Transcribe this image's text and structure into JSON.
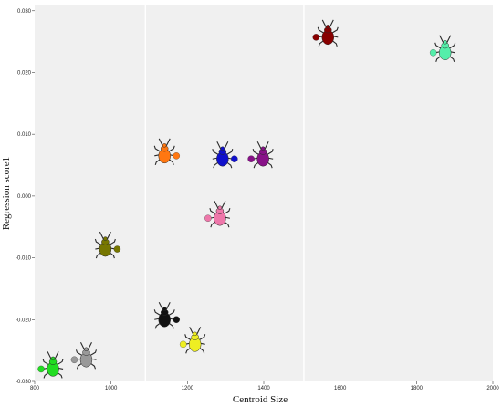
{
  "chart_data": {
    "type": "scatter",
    "xlabel": "Centroid Size",
    "ylabel": "Regression score1",
    "xlim": [
      800,
      2000
    ],
    "ylim": [
      -0.03,
      0.031
    ],
    "x_ticks": [
      {
        "value": 800,
        "label": "800"
      },
      {
        "value": 1000,
        "label": "1000"
      },
      {
        "value": 1200,
        "label": "1200"
      },
      {
        "value": 1400,
        "label": "1400"
      },
      {
        "value": 1600,
        "label": "1600"
      },
      {
        "value": 1800,
        "label": "1800"
      },
      {
        "value": 2000,
        "label": "2000"
      }
    ],
    "y_ticks": [
      {
        "value": 0.03,
        "label": "0.030"
      },
      {
        "value": 0.02,
        "label": "0.020"
      },
      {
        "value": 0.01,
        "label": "0.010"
      },
      {
        "value": 0.0,
        "label": "0.000"
      },
      {
        "value": -0.01,
        "label": "-0.010"
      },
      {
        "value": -0.02,
        "label": "-0.020"
      },
      {
        "value": -0.03,
        "label": "-0.030"
      }
    ],
    "vertical_lines": [
      1090,
      1505
    ],
    "grid": false,
    "points": [
      {
        "x": 848,
        "y": -0.0277,
        "color": "#22dd22",
        "side": "left"
      },
      {
        "x": 935,
        "y": -0.0262,
        "color": "#999999",
        "side": "left"
      },
      {
        "x": 985,
        "y": -0.0083,
        "color": "#777700",
        "side": "right"
      },
      {
        "x": 1140,
        "y": 0.0068,
        "color": "#ff7711",
        "side": "right"
      },
      {
        "x": 1140,
        "y": -0.0197,
        "color": "#111111",
        "side": "right"
      },
      {
        "x": 1220,
        "y": -0.0237,
        "color": "#eeee22",
        "side": "left"
      },
      {
        "x": 1292,
        "y": 0.0063,
        "color": "#1111cc",
        "side": "right"
      },
      {
        "x": 1285,
        "y": -0.0033,
        "color": "#ee77aa",
        "side": "left"
      },
      {
        "x": 1398,
        "y": 0.0063,
        "color": "#881188",
        "side": "left"
      },
      {
        "x": 1568,
        "y": 0.026,
        "color": "#880000",
        "side": "left"
      },
      {
        "x": 1875,
        "y": 0.0235,
        "color": "#55eeaa",
        "side": "left"
      }
    ]
  }
}
